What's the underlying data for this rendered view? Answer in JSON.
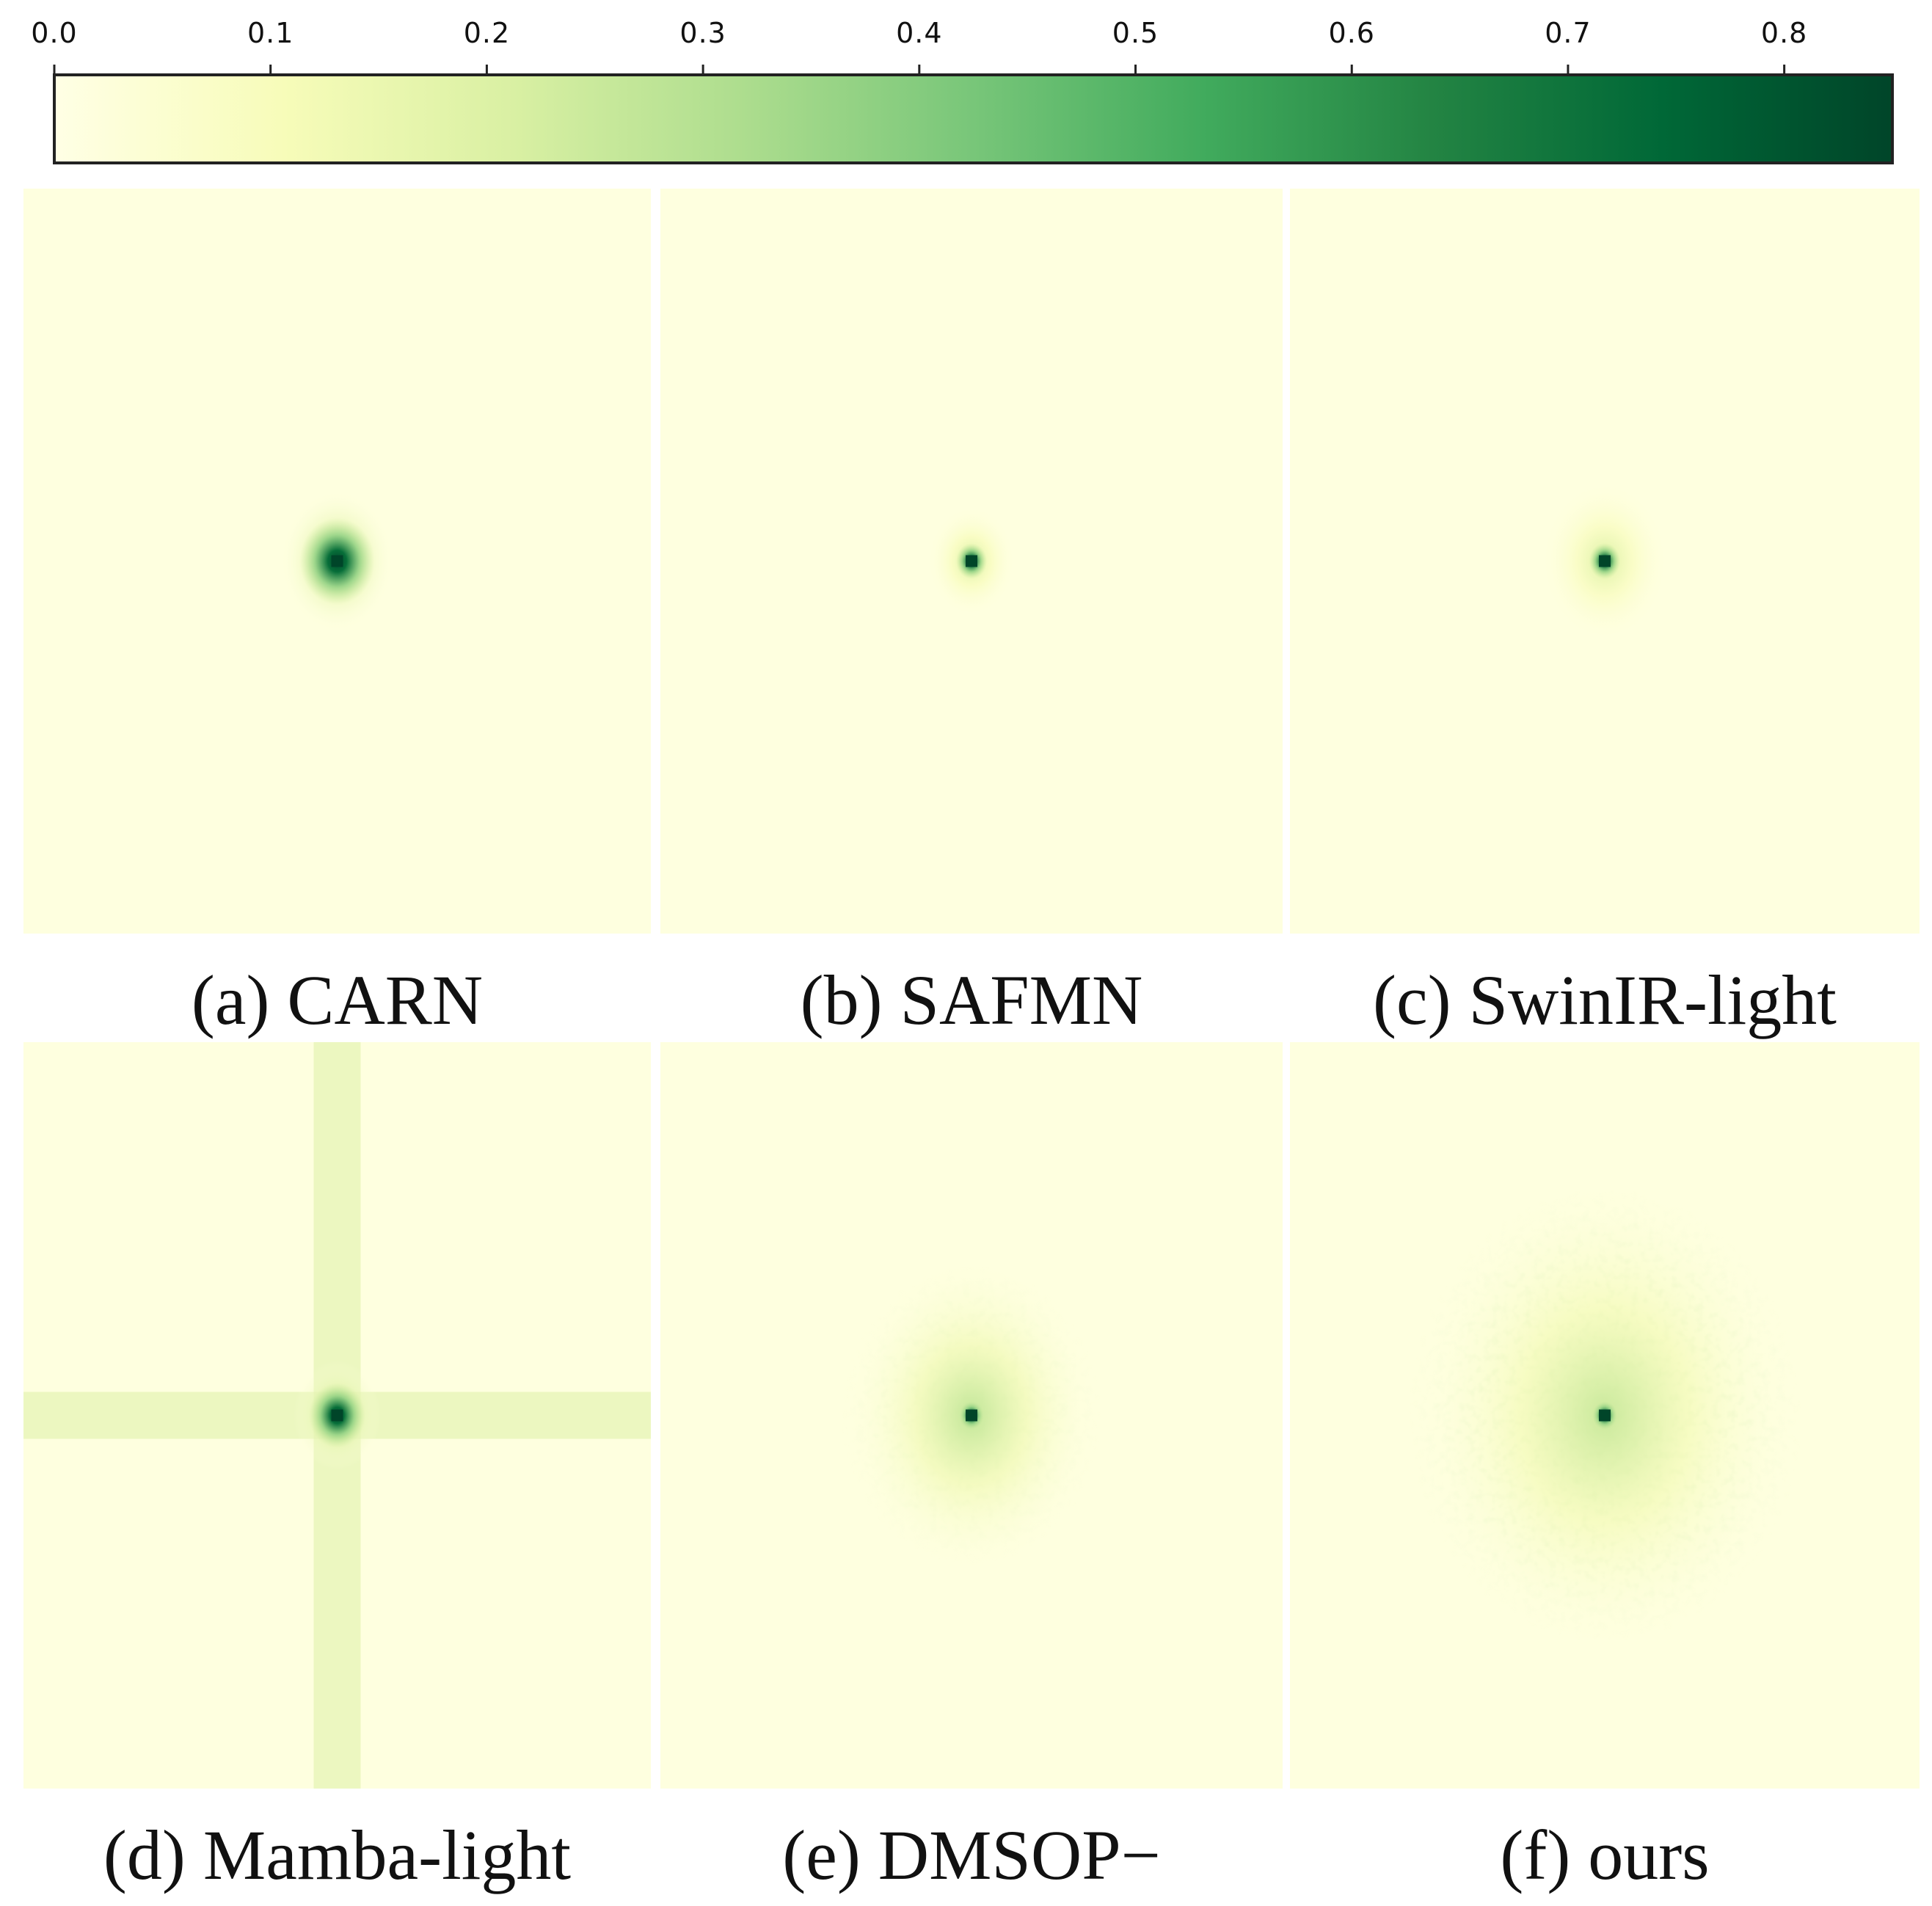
{
  "chart_data": {
    "type": "heatmap",
    "title": "",
    "colormap": "YlGn",
    "colorbar": {
      "min": 0.0,
      "max": 0.85,
      "ticks": [
        {
          "value": 0.0,
          "label": "0.0"
        },
        {
          "value": 0.1,
          "label": "0.1"
        },
        {
          "value": 0.2,
          "label": "0.2"
        },
        {
          "value": 0.3,
          "label": "0.3"
        },
        {
          "value": 0.4,
          "label": "0.4"
        },
        {
          "value": 0.5,
          "label": "0.5"
        },
        {
          "value": 0.6,
          "label": "0.6"
        },
        {
          "value": 0.7,
          "label": "0.7"
        },
        {
          "value": 0.8,
          "label": "0.8"
        }
      ],
      "colors": [
        "#ffffe5",
        "#f7fcb9",
        "#d9f0a3",
        "#addd8e",
        "#78c679",
        "#41ab5d",
        "#238443",
        "#006837",
        "#004529"
      ]
    },
    "panels": [
      {
        "id": "a",
        "caption": "(a) CARN",
        "peak_value": 0.85,
        "core_spread": 0.06,
        "halo_spread": 0.09,
        "halo_strength": 0.3,
        "cross_arms": false,
        "scatter": 0.0
      },
      {
        "id": "b",
        "caption": "(b) SAFMN",
        "peak_value": 0.85,
        "core_spread": 0.025,
        "halo_spread": 0.07,
        "halo_strength": 0.18,
        "cross_arms": false,
        "scatter": 0.0
      },
      {
        "id": "c",
        "caption": "(c) SwinIR-light",
        "peak_value": 0.85,
        "core_spread": 0.025,
        "halo_spread": 0.1,
        "halo_strength": 0.16,
        "cross_arms": false,
        "scatter": 0.0
      },
      {
        "id": "d",
        "caption": "(d) Mamba-light",
        "peak_value": 0.85,
        "core_spread": 0.045,
        "halo_spread": 0.07,
        "halo_strength": 0.3,
        "cross_arms": true,
        "scatter": 0.0
      },
      {
        "id": "e",
        "caption": "(e) DMSOP−",
        "peak_value": 0.85,
        "core_spread": 0.02,
        "halo_spread": 0.2,
        "halo_strength": 0.22,
        "cross_arms": false,
        "scatter": 0.5
      },
      {
        "id": "f",
        "caption": "(f) ours",
        "peak_value": 0.85,
        "core_spread": 0.02,
        "halo_spread": 0.3,
        "halo_strength": 0.2,
        "cross_arms": false,
        "scatter": 0.8
      }
    ]
  }
}
